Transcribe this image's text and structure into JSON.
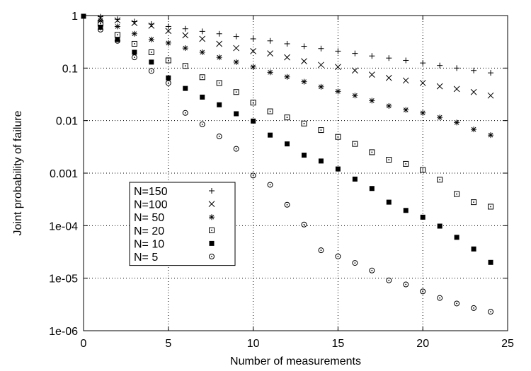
{
  "chart_data": {
    "type": "scatter",
    "xlabel": "Number of measurements",
    "ylabel": "Joint probability of failure",
    "xlim": [
      0,
      25
    ],
    "ylim": [
      1e-06,
      1
    ],
    "yscale": "log",
    "grid": "dotted, major ticks",
    "legend_position": "center-left",
    "x_ticks": [
      {
        "value": 0,
        "label": "0"
      },
      {
        "value": 5,
        "label": "5"
      },
      {
        "value": 10,
        "label": "10"
      },
      {
        "value": 15,
        "label": "15"
      },
      {
        "value": 20,
        "label": "20"
      },
      {
        "value": 25,
        "label": "25"
      }
    ],
    "y_ticks": [
      {
        "value": 1,
        "label": "1"
      },
      {
        "value": 0.1,
        "label": "0.1"
      },
      {
        "value": 0.01,
        "label": "0.01"
      },
      {
        "value": 0.001,
        "label": "0.001"
      },
      {
        "value": 0.0001,
        "label": "1e-04"
      },
      {
        "value": 1e-05,
        "label": "1e-05"
      },
      {
        "value": 1e-06,
        "label": "1e-06"
      }
    ],
    "series": [
      {
        "name": "N=150",
        "marker": "plus",
        "points": [
          [
            1,
            0.95
          ],
          [
            2,
            0.85
          ],
          [
            3,
            0.77
          ],
          [
            4,
            0.69
          ],
          [
            5,
            0.62
          ],
          [
            6,
            0.56
          ],
          [
            7,
            0.5
          ],
          [
            8,
            0.45
          ],
          [
            9,
            0.4
          ],
          [
            10,
            0.36
          ],
          [
            11,
            0.33
          ],
          [
            12,
            0.29
          ],
          [
            13,
            0.26
          ],
          [
            14,
            0.235
          ],
          [
            15,
            0.21
          ],
          [
            16,
            0.19
          ],
          [
            17,
            0.17
          ],
          [
            18,
            0.155
          ],
          [
            19,
            0.14
          ],
          [
            20,
            0.125
          ],
          [
            21,
            0.112
          ],
          [
            22,
            0.1
          ],
          [
            23,
            0.09
          ],
          [
            24,
            0.081
          ]
        ]
      },
      {
        "name": "N=100",
        "marker": "cross",
        "points": [
          [
            1,
            0.9
          ],
          [
            2,
            0.81
          ],
          [
            3,
            0.72
          ],
          [
            4,
            0.64
          ],
          [
            5,
            0.51
          ],
          [
            6,
            0.42
          ],
          [
            7,
            0.36
          ],
          [
            8,
            0.29
          ],
          [
            9,
            0.24
          ],
          [
            10,
            0.21
          ],
          [
            11,
            0.19
          ],
          [
            12,
            0.16
          ],
          [
            13,
            0.135
          ],
          [
            14,
            0.115
          ],
          [
            15,
            0.105
          ],
          [
            16,
            0.09
          ],
          [
            17,
            0.075
          ],
          [
            18,
            0.065
          ],
          [
            19,
            0.058
          ],
          [
            20,
            0.052
          ],
          [
            21,
            0.045
          ],
          [
            22,
            0.04
          ],
          [
            23,
            0.035
          ],
          [
            24,
            0.03
          ]
        ]
      },
      {
        "name": "N=  50",
        "marker": "star",
        "points": [
          [
            1,
            0.8
          ],
          [
            2,
            0.62
          ],
          [
            3,
            0.45
          ],
          [
            4,
            0.35
          ],
          [
            5,
            0.3
          ],
          [
            6,
            0.24
          ],
          [
            7,
            0.2
          ],
          [
            8,
            0.16
          ],
          [
            9,
            0.13
          ],
          [
            10,
            0.105
          ],
          [
            11,
            0.083
          ],
          [
            12,
            0.068
          ],
          [
            13,
            0.055
          ],
          [
            14,
            0.044
          ],
          [
            15,
            0.036
          ],
          [
            16,
            0.03
          ],
          [
            17,
            0.024
          ],
          [
            18,
            0.019
          ],
          [
            19,
            0.016
          ],
          [
            20,
            0.014
          ],
          [
            21,
            0.0115
          ],
          [
            22,
            0.0092
          ],
          [
            23,
            0.0068
          ],
          [
            24,
            0.0053
          ]
        ]
      },
      {
        "name": "N=  20",
        "marker": "box",
        "points": [
          [
            1,
            0.7
          ],
          [
            2,
            0.43
          ],
          [
            3,
            0.29
          ],
          [
            4,
            0.2
          ],
          [
            5,
            0.14
          ],
          [
            6,
            0.11
          ],
          [
            7,
            0.067
          ],
          [
            8,
            0.052
          ],
          [
            9,
            0.035
          ],
          [
            10,
            0.022
          ],
          [
            11,
            0.015
          ],
          [
            12,
            0.0115
          ],
          [
            13,
            0.0088
          ],
          [
            14,
            0.0066
          ],
          [
            15,
            0.0049
          ],
          [
            16,
            0.0036
          ],
          [
            17,
            0.0025
          ],
          [
            18,
            0.0018
          ],
          [
            19,
            0.0015
          ],
          [
            20,
            0.00115
          ],
          [
            21,
            0.00075
          ],
          [
            22,
            0.0004
          ],
          [
            23,
            0.00028
          ],
          [
            24,
            0.00023
          ]
        ]
      },
      {
        "name": "N=  10",
        "marker": "filled-box",
        "points": [
          [
            0,
            0.97
          ],
          [
            1,
            0.6
          ],
          [
            2,
            0.35
          ],
          [
            3,
            0.2
          ],
          [
            4,
            0.13
          ],
          [
            5,
            0.065
          ],
          [
            6,
            0.041
          ],
          [
            7,
            0.028
          ],
          [
            8,
            0.02
          ],
          [
            9,
            0.0135
          ],
          [
            10,
            0.0098
          ],
          [
            11,
            0.0053
          ],
          [
            12,
            0.0036
          ],
          [
            13,
            0.0022
          ],
          [
            14,
            0.0017
          ],
          [
            15,
            0.0012
          ],
          [
            16,
            0.00077
          ],
          [
            17,
            0.00051
          ],
          [
            18,
            0.00028
          ],
          [
            19,
            0.000195
          ],
          [
            20,
            0.000145
          ],
          [
            21,
            9.8e-05
          ],
          [
            22,
            6e-05
          ],
          [
            23,
            3.6e-05
          ],
          [
            24,
            2e-05
          ]
        ]
      },
      {
        "name": "N=   5",
        "marker": "circle",
        "points": [
          [
            1,
            0.54
          ],
          [
            2,
            0.33
          ],
          [
            3,
            0.16
          ],
          [
            4,
            0.088
          ],
          [
            5,
            0.052
          ],
          [
            6,
            0.014
          ],
          [
            7,
            0.0085
          ],
          [
            8,
            0.005
          ],
          [
            9,
            0.0029
          ],
          [
            10,
            0.0009
          ],
          [
            11,
            0.0006
          ],
          [
            12,
            0.00025
          ],
          [
            13,
            0.000105
          ],
          [
            14,
            3.4e-05
          ],
          [
            15,
            2.6e-05
          ],
          [
            16,
            1.95e-05
          ],
          [
            17,
            1.4e-05
          ],
          [
            18,
            9.1e-06
          ],
          [
            19,
            7.6e-06
          ],
          [
            20,
            5.6e-06
          ],
          [
            21,
            4.2e-06
          ],
          [
            22,
            3.3e-06
          ],
          [
            23,
            2.7e-06
          ],
          [
            24,
            2.3e-06
          ]
        ]
      }
    ]
  }
}
